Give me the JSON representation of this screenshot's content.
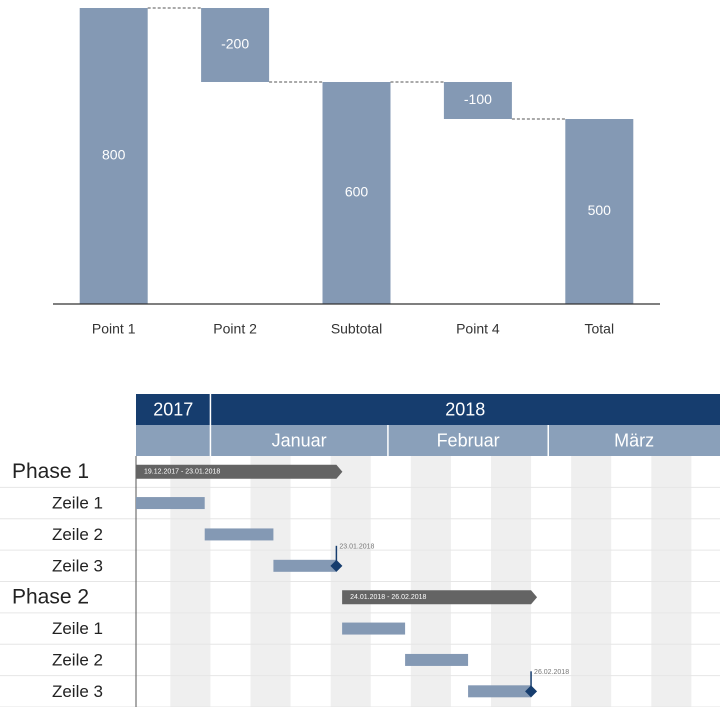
{
  "chart_data": [
    {
      "type": "waterfall",
      "categories": [
        "Point 1",
        "Point 2",
        "Subtotal",
        "Point 4",
        "Total"
      ],
      "values": [
        800,
        -200,
        600,
        -100,
        500
      ],
      "is_total": [
        false,
        false,
        true,
        false,
        true
      ],
      "color": "#8499b4",
      "ylim": [
        0,
        800
      ]
    },
    {
      "type": "gantt",
      "xlim": [
        "2017-12-19",
        "2018-03-31"
      ],
      "years": [
        {
          "label": "2017",
          "start": "2017-12-19",
          "end": "2018-01-01"
        },
        {
          "label": "2018",
          "start": "2018-01-01",
          "end": "2018-03-31"
        }
      ],
      "months": [
        {
          "label": "Januar",
          "start": "2018-01-01",
          "end": "2018-02-01"
        },
        {
          "label": "Februar",
          "start": "2018-02-01",
          "end": "2018-03-01"
        },
        {
          "label": "März",
          "start": "2018-03-01",
          "end": "2018-03-31"
        }
      ],
      "rows": [
        {
          "label": "Phase 1",
          "kind": "phase",
          "start": "2017-12-19",
          "end": "2018-01-23",
          "bar_label": "19.12.2017 - 23.01.2018"
        },
        {
          "label": "Zeile 1",
          "kind": "task",
          "start": "2017-12-19",
          "end": "2017-12-31"
        },
        {
          "label": "Zeile 2",
          "kind": "task",
          "start": "2017-12-31",
          "end": "2018-01-12"
        },
        {
          "label": "Zeile 3",
          "kind": "task",
          "start": "2018-01-12",
          "end": "2018-01-23",
          "milestone": {
            "date": "2018-01-23",
            "label": "23.01.2018"
          }
        },
        {
          "label": "Phase 2",
          "kind": "phase",
          "start": "2018-01-24",
          "end": "2018-02-26",
          "bar_label": "24.01.2018 - 26.02.2018"
        },
        {
          "label": "Zeile 1",
          "kind": "task",
          "start": "2018-01-24",
          "end": "2018-02-04"
        },
        {
          "label": "Zeile 2",
          "kind": "task",
          "start": "2018-02-04",
          "end": "2018-02-15"
        },
        {
          "label": "Zeile 3",
          "kind": "task",
          "start": "2018-02-15",
          "end": "2018-02-26",
          "milestone": {
            "date": "2018-02-26",
            "label": "26.02.2018"
          }
        }
      ]
    }
  ]
}
